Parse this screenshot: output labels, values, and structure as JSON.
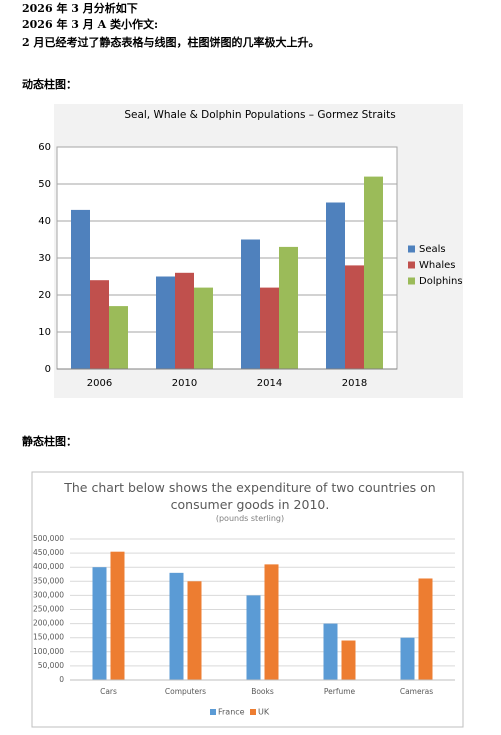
{
  "document": {
    "lines": [
      "2026 年 3 月分析如下",
      "2026 年 3 月 A 类小作文:",
      "2 月已经考过了静态表格与线图，柱图饼图的几率极大上升。"
    ],
    "sections": [
      "动态柱图：",
      "静态柱图："
    ]
  },
  "chart_data": [
    {
      "type": "bar",
      "title": "Seal, Whale & Dolphin Populations – Gormez Straits",
      "categories": [
        "2006",
        "2010",
        "2014",
        "2018"
      ],
      "series": [
        {
          "name": "Seals",
          "color": "#4f81bd",
          "values": [
            43,
            25,
            35,
            45
          ]
        },
        {
          "name": "Whales",
          "color": "#c0504d",
          "values": [
            24,
            26,
            22,
            28
          ]
        },
        {
          "name": "Dolphins",
          "color": "#9bbb59",
          "values": [
            17,
            22,
            33,
            52
          ]
        }
      ],
      "ylim": [
        0,
        60
      ],
      "yticks": [
        0,
        10,
        20,
        30,
        40,
        50,
        60
      ],
      "grid": true,
      "legend": "right"
    },
    {
      "type": "bar",
      "title": "The chart below shows the expenditure of two countries on consumer goods in 2010.",
      "subtitle": "(pounds sterling)",
      "categories": [
        "Cars",
        "Computers",
        "Books",
        "Perfume",
        "Cameras"
      ],
      "series": [
        {
          "name": "France",
          "color": "#5b9bd5",
          "values": [
            400000,
            380000,
            300000,
            200000,
            150000
          ]
        },
        {
          "name": "UK",
          "color": "#ed7d31",
          "values": [
            455000,
            350000,
            410000,
            140000,
            360000
          ]
        }
      ],
      "ylim": [
        0,
        500000
      ],
      "yticks": [
        0,
        {
          "value": 50000,
          "label": "50,000"
        },
        {
          "value": 100000,
          "label": "100,000"
        },
        {
          "value": 150000,
          "label": "150,000"
        },
        {
          "value": 200000,
          "label": "200,000"
        },
        {
          "value": 250000,
          "label": "250,000"
        },
        {
          "value": 300000,
          "label": "300,000"
        },
        {
          "value": 350000,
          "label": "350,000"
        },
        {
          "value": 400000,
          "label": "400,000"
        },
        {
          "value": 450000,
          "label": "450,000"
        },
        {
          "value": 500000,
          "label": "500,000"
        }
      ],
      "grid": true,
      "legend": "bottom"
    }
  ]
}
